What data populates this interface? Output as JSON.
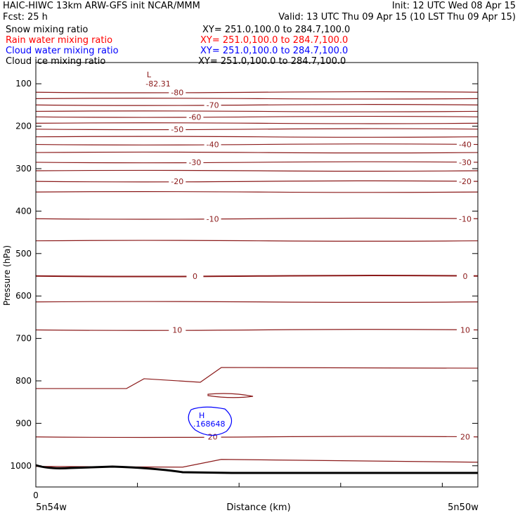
{
  "header": {
    "title": "HAIC-HIWC 13km ARW-GFS init   NCAR/MMM",
    "init": "Init: 12 UTC Wed 08 Apr 15",
    "fcst": "Fcst:   25 h",
    "valid": "Valid: 13 UTC Thu 09 Apr 15 (10 LST Thu 09 Apr 15)"
  },
  "fields": [
    {
      "name": "Snow mixing ratio",
      "xy": "XY= 251.0,100.0 to 284.7,100.0",
      "color": "#000000"
    },
    {
      "name": "Rain water mixing ratio",
      "xy": "XY= 251.0,100.0 to 284.7,100.0",
      "color": "#ff0000"
    },
    {
      "name": "Cloud water mixing ratio",
      "xy": "XY= 251.0,100.0 to 284.7,100.0",
      "color": "#0000ff"
    },
    {
      "name": "Cloud ice mixing ratio",
      "xy": "XY= 251.0,100.0 to 284.7,100.0",
      "color": "#000000"
    }
  ],
  "colors": {
    "temperature": "#8b1a1a",
    "cloud_water": "#0000ff",
    "terrain": "#000000"
  },
  "chart_data": {
    "type": "line",
    "ylabel": "Pressure (hPa)",
    "xlabel": "Distance (km)",
    "ylim": [
      1050,
      50
    ],
    "ytick_values": [
      100,
      200,
      300,
      400,
      500,
      600,
      700,
      800,
      900,
      1000
    ],
    "ytick_labels": [
      "100",
      "200",
      "300",
      "400",
      "500",
      "600",
      "700",
      "800",
      "900",
      "1000"
    ],
    "x_origin_label": "0",
    "x_left_label": "5n54w",
    "x_right_label": "5n50w",
    "temperature_isotherms": [
      {
        "level": -80,
        "pressure": 120,
        "label": "-80"
      },
      {
        "level": -75,
        "pressure": 135,
        "label": ""
      },
      {
        "level": -70,
        "pressure": 150,
        "label": "-70"
      },
      {
        "level": -65,
        "pressure": 165,
        "label": ""
      },
      {
        "level": -60,
        "pressure": 178,
        "label": "-60"
      },
      {
        "level": -55,
        "pressure": 193,
        "label": ""
      },
      {
        "level": -50,
        "pressure": 207,
        "label": "-50"
      },
      {
        "level": -45,
        "pressure": 225,
        "label": ""
      },
      {
        "level": -40,
        "pressure": 243,
        "label": "-40"
      },
      {
        "level": -35,
        "pressure": 262,
        "label": ""
      },
      {
        "level": -30,
        "pressure": 285,
        "label": "-30"
      },
      {
        "level": -25,
        "pressure": 305,
        "label": ""
      },
      {
        "level": -20,
        "pressure": 330,
        "label": "-20"
      },
      {
        "level": -15,
        "pressure": 355,
        "label": ""
      },
      {
        "level": -10,
        "pressure": 418,
        "label": "-10"
      },
      {
        "level": -5,
        "pressure": 470,
        "label": ""
      },
      {
        "level": 0,
        "pressure": 553,
        "label": "0"
      },
      {
        "level": 5,
        "pressure": 614,
        "label": ""
      },
      {
        "level": 10,
        "pressure": 680,
        "label": "10"
      },
      {
        "level": 15,
        "pressure": 790,
        "label": ""
      },
      {
        "level": 20,
        "pressure": 932,
        "label": "20"
      },
      {
        "level": 25,
        "pressure": 990,
        "label": ""
      }
    ],
    "minimum_marker": {
      "symbol": "L",
      "value": "-82.31"
    },
    "cloud_water_maximum": {
      "symbol": "H",
      "value": ".168648"
    }
  }
}
